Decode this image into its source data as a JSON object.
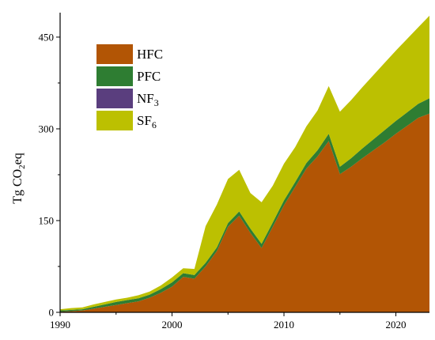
{
  "chart_data": {
    "type": "area",
    "stacked": true,
    "xlabel": "",
    "ylabel_parts": [
      "Tg CO",
      "2",
      "eq"
    ],
    "xlim": [
      1990,
      2023
    ],
    "ylim": [
      0,
      490
    ],
    "x_ticks": [
      1990,
      2000,
      2010,
      2020
    ],
    "y_ticks": [
      0,
      150,
      300,
      450
    ],
    "grid": false,
    "legend_position": "top-left",
    "x": [
      1990,
      1991,
      1992,
      1993,
      1994,
      1995,
      1996,
      1997,
      1998,
      1999,
      2000,
      2001,
      2002,
      2003,
      2004,
      2005,
      2006,
      2007,
      2008,
      2009,
      2010,
      2011,
      2012,
      2013,
      2014,
      2015,
      2016,
      2017,
      2018,
      2019,
      2020,
      2021,
      2022,
      2023
    ],
    "series": [
      {
        "name": "HFC",
        "label_parts": [
          "HFC"
        ],
        "color": "#b25505",
        "values": [
          1,
          2,
          3,
          6,
          9,
          12,
          15,
          18,
          24,
          32,
          42,
          58,
          55,
          75,
          100,
          140,
          158,
          130,
          105,
          140,
          175,
          205,
          235,
          255,
          280,
          226,
          238,
          252,
          265,
          278,
          292,
          305,
          318,
          325
        ]
      },
      {
        "name": "PFC",
        "label_parts": [
          "PFC"
        ],
        "color": "#2e7d32",
        "values": [
          2,
          2,
          2,
          3,
          4,
          5,
          5,
          5,
          5,
          6,
          7,
          6,
          6,
          6,
          6,
          6,
          7,
          7,
          7,
          7,
          8,
          8,
          9,
          10,
          12,
          12,
          14,
          16,
          18,
          20,
          21,
          22,
          23,
          25
        ]
      },
      {
        "name": "NF3",
        "label_parts": [
          "NF",
          "3"
        ],
        "color": "#5a3e7e",
        "values": [
          0,
          0,
          0,
          0,
          0,
          0,
          0,
          0,
          0,
          0,
          0,
          0,
          0,
          0,
          0,
          0,
          0,
          0,
          0,
          0,
          0,
          0,
          0,
          0,
          0,
          0,
          0,
          0,
          0,
          0,
          0,
          0,
          0,
          0
        ]
      },
      {
        "name": "SF6",
        "label_parts": [
          "SF",
          "6"
        ],
        "color": "#bcc001",
        "values": [
          2,
          3,
          3,
          4,
          4,
          4,
          4,
          5,
          5,
          6,
          8,
          8,
          10,
          60,
          70,
          72,
          68,
          58,
          68,
          60,
          60,
          57,
          60,
          65,
          78,
          90,
          95,
          100,
          105,
          110,
          115,
          120,
          125,
          135
        ]
      }
    ]
  }
}
